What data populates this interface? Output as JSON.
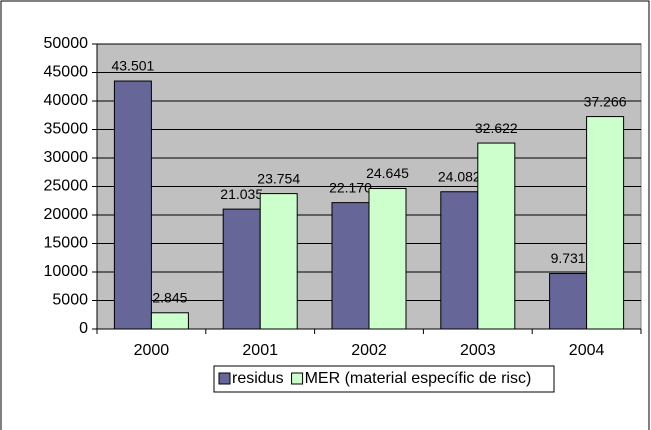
{
  "chart_data": {
    "type": "bar",
    "categories": [
      "2000",
      "2001",
      "2002",
      "2003",
      "2004"
    ],
    "series": [
      {
        "name": "residus",
        "color": "#666699",
        "values": [
          43501,
          21035,
          22170,
          24082,
          9731
        ],
        "value_labels": [
          "43.501",
          "21.035",
          "22.170",
          "24.082",
          "9.731"
        ]
      },
      {
        "name": "MER (material específic de risc)",
        "color": "#ccffcc",
        "values": [
          2845,
          23754,
          24645,
          32622,
          37266
        ],
        "value_labels": [
          "2.845",
          "23.754",
          "24.645",
          "32.622",
          "37.266"
        ]
      }
    ],
    "ylim": [
      0,
      50000
    ],
    "yticks": [
      0,
      5000,
      10000,
      15000,
      20000,
      25000,
      30000,
      35000,
      40000,
      45000,
      50000
    ],
    "grid": true,
    "plot_background": "#c0c0c0",
    "legend": "bottom"
  }
}
